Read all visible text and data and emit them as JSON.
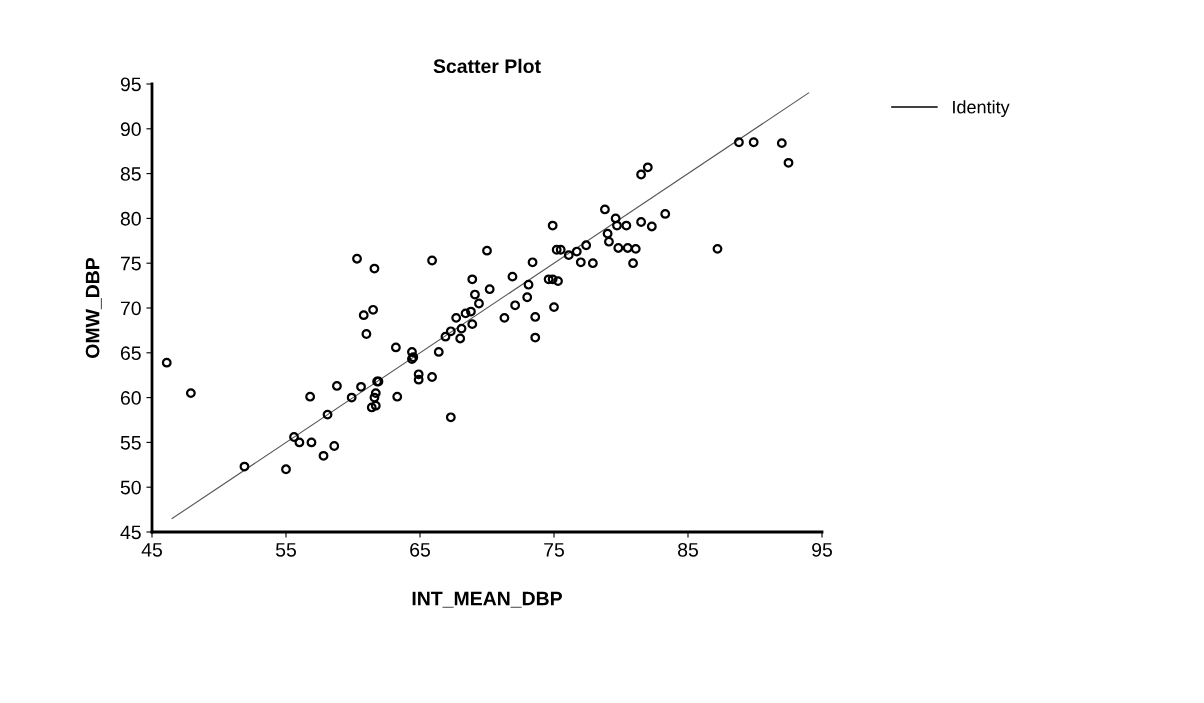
{
  "chart_data": {
    "type": "scatter",
    "title": "Scatter Plot",
    "xlabel": "INT_MEAN_DBP",
    "ylabel": "OMW_DBP",
    "xlim": [
      45,
      95
    ],
    "xticks": [
      45,
      55,
      65,
      75,
      85,
      95
    ],
    "ylim": [
      45,
      95
    ],
    "yticks": [
      45,
      50,
      55,
      60,
      65,
      70,
      75,
      80,
      85,
      90,
      95
    ],
    "grid": false,
    "legend": "top right",
    "series": [
      {
        "color": "#000000",
        "marker": "circle",
        "x": [
          46.1,
          47.9,
          51.9,
          55.0,
          55.6,
          56.0,
          56.8,
          56.9,
          57.8,
          58.1,
          58.6,
          58.8,
          59.9,
          60.3,
          60.6,
          60.8,
          61.0,
          61.5,
          61.6,
          61.4,
          61.6,
          61.7,
          61.7,
          61.8,
          61.9,
          63.2,
          63.3,
          64.4,
          64.4,
          64.5,
          64.9,
          64.9,
          65.9,
          65.9,
          66.4,
          66.9,
          67.3,
          67.3,
          67.7,
          68.0,
          68.1,
          68.4,
          68.8,
          68.9,
          68.9,
          69.1,
          69.4,
          70.0,
          70.2,
          71.3,
          71.9,
          72.1,
          73.0,
          73.1,
          73.4,
          73.6,
          73.6,
          74.6,
          74.9,
          74.9,
          75.0,
          75.2,
          75.3,
          75.5,
          76.1,
          76.7,
          77.0,
          77.4,
          77.9,
          78.8,
          79.0,
          79.1,
          79.6,
          79.7,
          79.8,
          80.4,
          80.5,
          80.9,
          81.1,
          81.5,
          81.5,
          82.0,
          82.3,
          83.3,
          87.2,
          88.8,
          89.9,
          92.0,
          92.5
        ],
        "values": [
          63.9,
          60.5,
          52.3,
          52.0,
          55.6,
          55.0,
          60.1,
          55.0,
          53.5,
          58.1,
          54.6,
          61.3,
          60.0,
          75.5,
          61.2,
          69.2,
          67.1,
          69.8,
          74.4,
          58.9,
          60.0,
          60.5,
          59.1,
          61.8,
          61.8,
          65.6,
          60.1,
          65.1,
          64.3,
          64.5,
          62.6,
          62.0,
          75.3,
          62.3,
          65.1,
          66.8,
          67.4,
          57.8,
          68.9,
          66.6,
          67.7,
          69.4,
          69.6,
          68.2,
          73.2,
          71.5,
          70.5,
          76.4,
          72.1,
          68.9,
          73.5,
          70.3,
          71.2,
          72.6,
          75.1,
          69.0,
          66.7,
          73.2,
          79.2,
          73.2,
          70.1,
          76.5,
          73.0,
          76.5,
          75.9,
          76.3,
          75.1,
          77.0,
          75.0,
          81.0,
          78.3,
          77.4,
          80.0,
          79.2,
          76.7,
          79.2,
          76.7,
          75.0,
          76.6,
          79.6,
          84.9,
          85.7,
          79.1,
          80.5,
          76.6,
          88.5,
          88.5,
          88.4,
          86.2
        ]
      },
      {
        "type": "line",
        "name": "Identity",
        "color": "#555555",
        "line_style": "solid",
        "marker": "none",
        "x": [
          46.5,
          94
        ],
        "values": [
          46.5,
          94
        ]
      }
    ]
  }
}
